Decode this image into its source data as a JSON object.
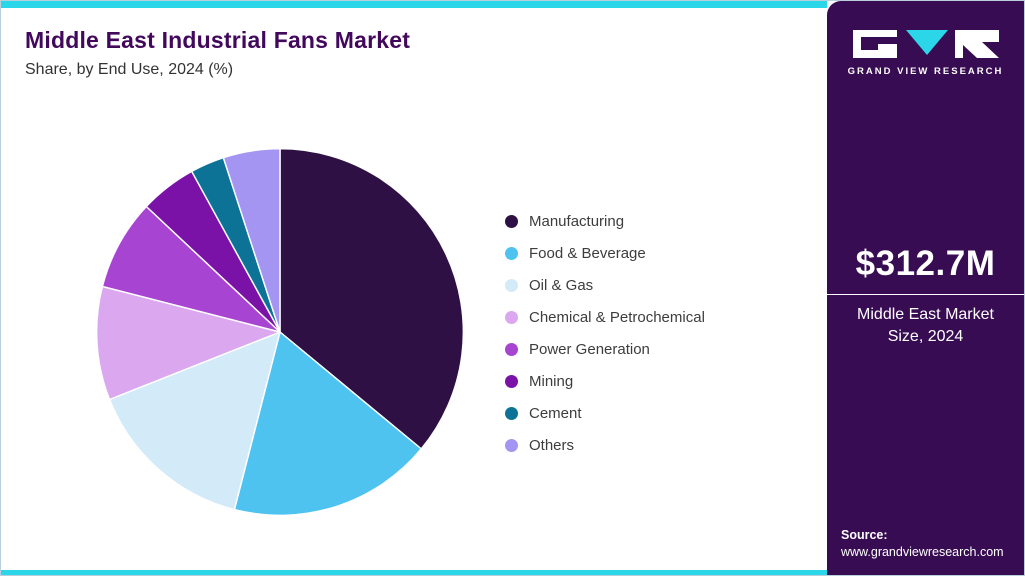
{
  "header": {
    "title": "Middle East Industrial Fans Market",
    "subtitle": "Share, by End Use, 2024 (%)"
  },
  "sidebar": {
    "brand": "GRAND VIEW RESEARCH",
    "market_size_value": "$312.7M",
    "market_size_label": "Middle East Market Size, 2024",
    "source_label": "Source:",
    "source_url": "www.grandviewresearch.com"
  },
  "colors": {
    "accent_cyan": "#2BD6E8",
    "sidebar_purple": "#380C52",
    "title_purple": "#42085C"
  },
  "chart_data": {
    "type": "pie",
    "title": "Middle East Industrial Fans Market Share, by End Use, 2024 (%)",
    "legend_position": "right",
    "start_angle_deg": 0,
    "direction": "clockwise",
    "unit": "%",
    "categories": [
      "Manufacturing",
      "Food & Beverage",
      "Oil & Gas",
      "Chemical & Petrochemical",
      "Power Generation",
      "Mining",
      "Cement",
      "Others"
    ],
    "values": [
      36,
      18,
      15,
      10,
      8,
      5,
      3,
      5
    ],
    "colors": [
      "#2E1045",
      "#4FC3F0",
      "#D3EAF8",
      "#DBA8EF",
      "#A844D2",
      "#7A12A8",
      "#0D7396",
      "#A495F2"
    ]
  }
}
